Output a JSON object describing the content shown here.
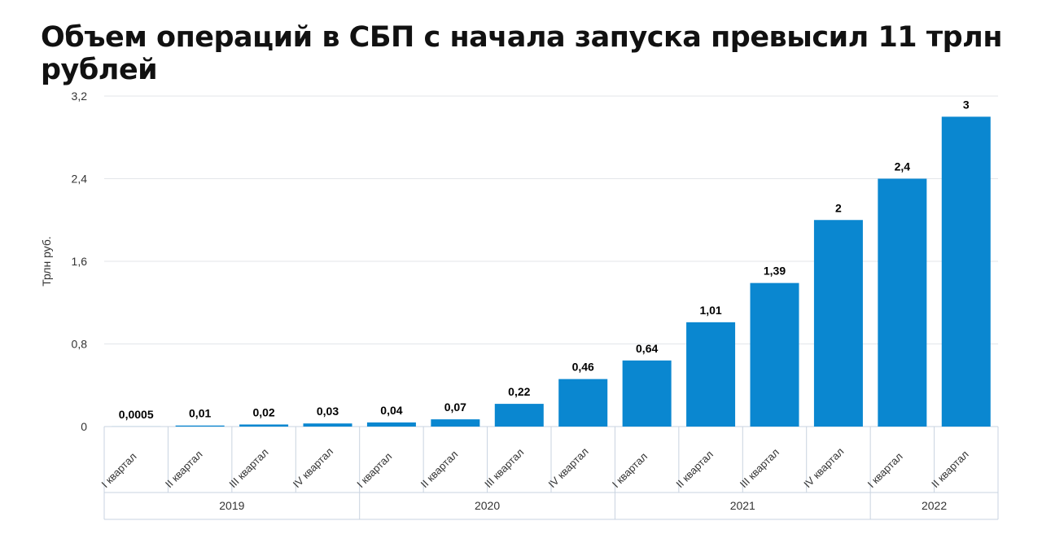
{
  "chart_data": {
    "type": "bar",
    "title": "Объем операций в СБП с начала запуска превысил 11 трлн рублей",
    "ylabel": "Трлн руб.",
    "xlabel": "",
    "ylim": [
      0,
      3.2
    ],
    "yticks": [
      "0",
      "0,8",
      "1,6",
      "2,4",
      "3,2"
    ],
    "grid": true,
    "color": "#0a87d0",
    "categories": [
      "I квартал",
      "II квартал",
      "III квартал",
      "IV квартал",
      "I квартал",
      "II квартал",
      "III квартал",
      "IV квартал",
      "I квартал",
      "II квартал",
      "III квартал",
      "IV квартал",
      "I квартал",
      "II квартал"
    ],
    "groups": [
      {
        "label": "2019",
        "count": 4
      },
      {
        "label": "2020",
        "count": 4
      },
      {
        "label": "2021",
        "count": 4
      },
      {
        "label": "2022",
        "count": 2
      }
    ],
    "values": [
      0.0005,
      0.01,
      0.02,
      0.03,
      0.04,
      0.07,
      0.22,
      0.46,
      0.64,
      1.01,
      1.39,
      2,
      2.4,
      3
    ],
    "data_labels": [
      "0,0005",
      "0,01",
      "0,02",
      "0,03",
      "0,04",
      "0,07",
      "0,22",
      "0,46",
      "0,64",
      "1,01",
      "1,39",
      "2",
      "2,4",
      "3"
    ]
  }
}
